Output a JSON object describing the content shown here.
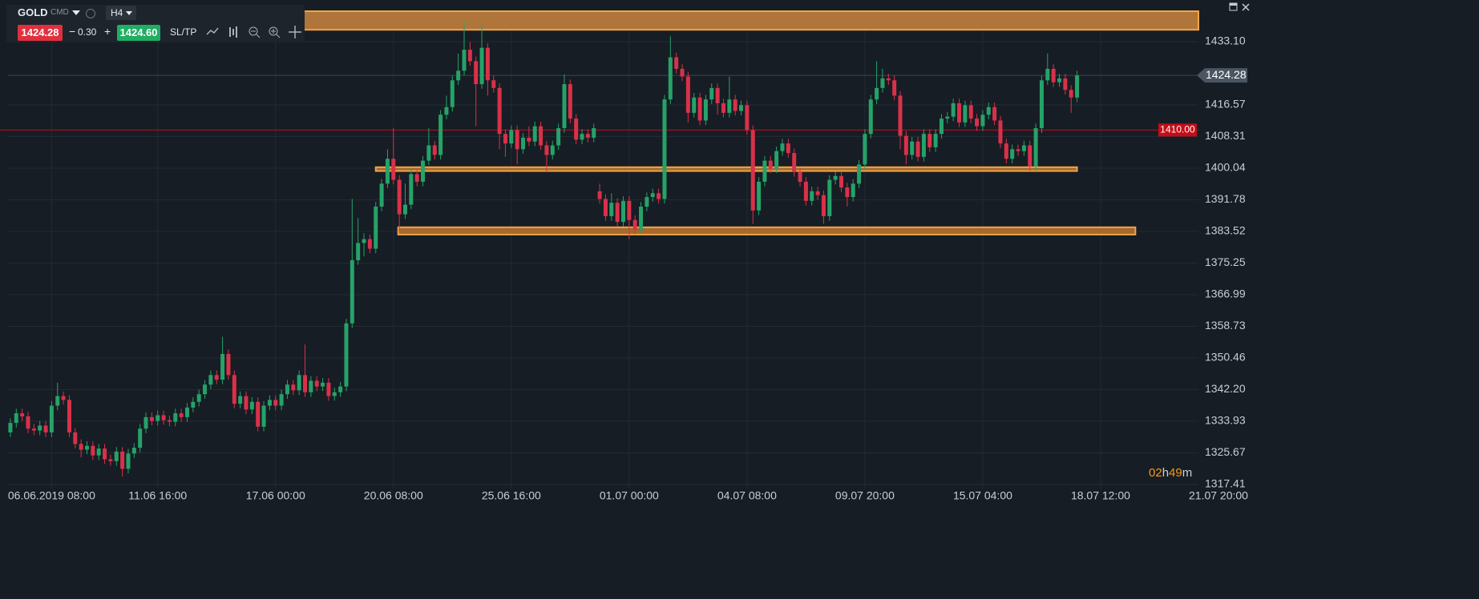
{
  "toolbar": {
    "symbol": "GOLD",
    "market": "CMD",
    "timeframe": "H4",
    "bid": "1424.28",
    "lot": "0.30",
    "ask": "1424.60",
    "sltp": "SL/TP"
  },
  "countdown": [
    "02",
    "h",
    "49",
    "m"
  ],
  "chart_data": {
    "type": "candlestick",
    "up_color": "#26a269",
    "down_color": "#d9314a",
    "grid": true,
    "xlim": [
      -0.4,
      201.6
    ],
    "ylim": [
      1316.36,
      1441.05
    ],
    "yticks": [
      1317.41,
      1325.67,
      1333.93,
      {
        "value": 1342.2,
        "label": "1342.20"
      },
      1350.46,
      1358.73,
      1366.99,
      1375.25,
      1383.52,
      1391.78,
      1400.04,
      1408.31,
      1416.57,
      {
        "value": 1433.1,
        "label": "1433.10"
      }
    ],
    "xticks": [
      {
        "value": 7,
        "label": "06.06.2019 08:00"
      },
      {
        "value": 25,
        "label": "11.06 16:00"
      },
      {
        "value": 45,
        "label": "17.06 00:00"
      },
      {
        "value": 65,
        "label": "20.06 08:00"
      },
      {
        "value": 85,
        "label": "25.06 16:00"
      },
      {
        "value": 105,
        "label": "01.07 00:00"
      },
      {
        "value": 125,
        "label": "04.07 08:00"
      },
      {
        "value": 145,
        "label": "09.07 20:00"
      },
      {
        "value": 165,
        "label": "15.07 04:00"
      },
      {
        "value": 185,
        "label": "18.07 12:00"
      },
      {
        "value": 205,
        "label": "21.07 20:00"
      }
    ],
    "last_price": 1424.28,
    "alert_level": {
      "value": 1410,
      "label": "1410.00"
    },
    "zones": [
      {
        "from": 1436.2,
        "to": 1441.05,
        "start": -0.4,
        "end": 201.6
      },
      {
        "from": 1399.3,
        "to": 1400.3,
        "start": 62,
        "end": 181
      },
      {
        "from": 1382.7,
        "to": 1384.6,
        "start": 65.8,
        "end": 190.9
      }
    ],
    "open": [
      1331,
      1333.5,
      1336,
      1335.2,
      1332,
      1331.5,
      1332.8,
      1331,
      1338,
      1340.5,
      1339.5,
      1331,
      1328,
      1326.5,
      1327.5,
      1325,
      1326.8,
      1324,
      1323.5,
      1326,
      1321.5,
      1325.5,
      1327,
      1332,
      1335,
      1334,
      1335.5,
      1334.2,
      1333.8,
      1336,
      1335,
      1337.5,
      1339,
      1341,
      1343.5,
      1346,
      1344.8,
      1351.5,
      1346,
      1338.5,
      1340.5,
      1337,
      1339,
      1332.5,
      1338,
      1339.5,
      1338,
      1341,
      1343.5,
      1342,
      1346,
      1341.5,
      1344.5,
      1343,
      1344,
      1340.5,
      1341.5,
      1343,
      1359.5,
      1376,
      1380.5,
      1381.5,
      1379,
      1390,
      1396,
      1402.5,
      1397,
      1388,
      1390.5,
      1398.5,
      1396.5,
      1402,
      1406,
      1403.5,
      1414,
      1416,
      1423,
      1425.5,
      1431,
      1428,
      1422,
      1431.5,
      1423,
      1421,
      1409,
      1406.5,
      1410,
      1405,
      1408,
      1407,
      1411,
      1406,
      1403.5,
      1406,
      1410.5,
      1422,
      1413,
      1407.5,
      1409,
      1408,
      1394,
      1392,
      1387.5,
      1391,
      1386,
      1391.5,
      1386.5,
      1384,
      1390,
      1392.5,
      1393.5,
      1392,
      1418,
      1429,
      1426,
      1424,
      1414.5,
      1418.5,
      1412.5,
      1418,
      1421,
      1417,
      1414.5,
      1418,
      1415,
      1416.5,
      1410,
      1389,
      1396.5,
      1402,
      1400,
      1404.5,
      1406.5,
      1404,
      1399,
      1396.5,
      1391.5,
      1394,
      1393,
      1387.5,
      1397,
      1398,
      1395,
      1392.5,
      1396,
      1401,
      1409,
      1418,
      1421,
      1423.5,
      1423,
      1419,
      1408.5,
      1403.5,
      1407,
      1403,
      1409,
      1405.5,
      1409,
      1413,
      1413.5,
      1417,
      1412,
      1416.5,
      1413,
      1411,
      1414,
      1416,
      1412.5,
      1406.5,
      1402.5,
      1405,
      1404.5,
      1406,
      1400.5,
      1410.5,
      1423,
      1426,
      1422.5,
      1423.5,
      1420.5,
      1418.5
    ],
    "high": [
      1334.7,
      1337.2,
      1337.2,
      1336.4,
      1333.2,
      1334,
      1334,
      1339.2,
      1344,
      1341.7,
      1340.7,
      1332.2,
      1329.2,
      1328.7,
      1328.7,
      1328,
      1328,
      1325.2,
      1327.2,
      1327.2,
      1326.7,
      1328.2,
      1333.2,
      1336.2,
      1336.2,
      1336.7,
      1336.7,
      1335.4,
      1337.2,
      1337.2,
      1338.7,
      1340.2,
      1342.2,
      1344.7,
      1347.2,
      1347.2,
      1356,
      1352.7,
      1347.2,
      1341.7,
      1341.7,
      1340.2,
      1340.2,
      1339.2,
      1340.7,
      1340.7,
      1342.2,
      1344.7,
      1344.7,
      1347.2,
      1354,
      1345.7,
      1345.7,
      1345.2,
      1345.2,
      1342.7,
      1344.2,
      1360.7,
      1392,
      1387,
      1383,
      1382.7,
      1391.2,
      1397.2,
      1405,
      1410.5,
      1398.2,
      1396,
      1399.7,
      1399.7,
      1403.2,
      1410.5,
      1407.2,
      1415.2,
      1419,
      1424.2,
      1430,
      1438.5,
      1433,
      1429.2,
      1437.5,
      1432.7,
      1424.2,
      1422.2,
      1410.2,
      1411.2,
      1411.2,
      1409.2,
      1411,
      1412.2,
      1412.2,
      1407.2,
      1407.2,
      1411.7,
      1424.5,
      1423.2,
      1414.2,
      1410.2,
      1410.2,
      1411.7,
      1396,
      1393.2,
      1393.5,
      1392.2,
      1392.7,
      1392.7,
      1387.7,
      1391.2,
      1393.7,
      1394.7,
      1394.7,
      1419.2,
      1434.5,
      1430.2,
      1427.2,
      1425.2,
      1419.7,
      1419.7,
      1419.2,
      1422.2,
      1422.2,
      1418.2,
      1424,
      1419.2,
      1417.7,
      1417.7,
      1411.2,
      1397.7,
      1403.2,
      1403.2,
      1405.7,
      1407.7,
      1407.7,
      1405.2,
      1400.2,
      1397.7,
      1395.2,
      1395.2,
      1394.2,
      1398.2,
      1399.2,
      1399.2,
      1396.2,
      1397.2,
      1402.2,
      1410.2,
      1419.2,
      1428,
      1426,
      1424.7,
      1424.2,
      1420.2,
      1409.7,
      1408.2,
      1408.2,
      1410.2,
      1410.2,
      1410.2,
      1414.2,
      1414.7,
      1418.2,
      1418.2,
      1417.7,
      1417.7,
      1414.2,
      1415.2,
      1417.2,
      1417.2,
      1413.7,
      1407.7,
      1406.2,
      1406.2,
      1407.2,
      1407.2,
      1411.7,
      1424.2,
      1430,
      1427.2,
      1424.7,
      1424.7,
      1421.7,
      1425.5
    ],
    "low": [
      1329.8,
      1332.3,
      1334,
      1330.8,
      1330.3,
      1330.3,
      1329.8,
      1329.8,
      1336.8,
      1338.3,
      1329.8,
      1326.8,
      1324.5,
      1325.3,
      1323.8,
      1323.8,
      1322.8,
      1322.3,
      1322.3,
      1319.5,
      1320.3,
      1324.3,
      1325.8,
      1330.8,
      1332.8,
      1332.8,
      1333,
      1332.6,
      1332.6,
      1333.8,
      1333.8,
      1336.3,
      1337.8,
      1339.8,
      1342.3,
      1343.6,
      1343.6,
      1344.8,
      1337.3,
      1337.3,
      1335.8,
      1335.8,
      1331.3,
      1331.3,
      1336.8,
      1336.8,
      1336.8,
      1339.8,
      1340.8,
      1340.8,
      1340.3,
      1340.3,
      1341.8,
      1341.8,
      1339.3,
      1339.3,
      1340.3,
      1341.8,
      1358.3,
      1374.8,
      1377,
      1377.8,
      1377.8,
      1388.8,
      1394.8,
      1395.8,
      1383.5,
      1386.8,
      1389.3,
      1395.3,
      1395.3,
      1400.8,
      1402.3,
      1402.3,
      1412.8,
      1414.8,
      1421.8,
      1424.3,
      1426.8,
      1411,
      1420.8,
      1419,
      1419.8,
      1405,
      1403,
      1405.3,
      1401,
      1403.8,
      1405.8,
      1405.8,
      1404.8,
      1399,
      1402.3,
      1404.8,
      1409.3,
      1411.8,
      1406.3,
      1406.3,
      1406.8,
      1406.8,
      1390.8,
      1386.3,
      1386.3,
      1384.8,
      1384.8,
      1381.5,
      1382.8,
      1382.8,
      1388.8,
      1391.3,
      1390.8,
      1390.8,
      1416.8,
      1424.8,
      1422.8,
      1412,
      1413.3,
      1411.3,
      1411.3,
      1416.8,
      1414,
      1413.3,
      1413.3,
      1413.8,
      1413.8,
      1408.8,
      1385.5,
      1387.8,
      1395.3,
      1398.8,
      1398.8,
      1403.3,
      1402.8,
      1397.8,
      1395.3,
      1390.3,
      1390.3,
      1391.8,
      1385.5,
      1386.3,
      1395.8,
      1393.8,
      1390,
      1391.3,
      1394.8,
      1399.8,
      1407.8,
      1416.8,
      1419.8,
      1421.8,
      1417.8,
      1405,
      1401,
      1402.3,
      1401.8,
      1401.8,
      1404.3,
      1404.3,
      1407.8,
      1411.8,
      1412.3,
      1410.8,
      1410.8,
      1411.8,
      1409.8,
      1409.8,
      1412.8,
      1411.3,
      1405.3,
      1401.3,
      1401.3,
      1403.3,
      1403.3,
      1399.3,
      1399.3,
      1409.3,
      1421.8,
      1421.3,
      1421.3,
      1419.3,
      1414.5,
      1417.3
    ],
    "close": [
      1333.5,
      1336,
      1335.2,
      1332,
      1331.5,
      1332.8,
      1331,
      1338,
      1340.5,
      1339.5,
      1331,
      1328,
      1326.5,
      1327.5,
      1325,
      1326.8,
      1324,
      1323.5,
      1326,
      1321.5,
      1325.5,
      1327,
      1332,
      1335,
      1334,
      1335.5,
      1334.2,
      1333.8,
      1336,
      1335,
      1337.5,
      1339,
      1341,
      1343.5,
      1346,
      1344.8,
      1351.5,
      1346,
      1338.5,
      1340.5,
      1337,
      1339,
      1332.5,
      1338,
      1339.5,
      1338,
      1341,
      1343.5,
      1342,
      1346,
      1341.5,
      1344.5,
      1343,
      1344,
      1340.5,
      1341.5,
      1343,
      1359.5,
      1376,
      1380.5,
      1381.5,
      1379,
      1390,
      1396,
      1402.5,
      1397,
      1388,
      1390.5,
      1398.5,
      1396.5,
      1402,
      1406,
      1403.5,
      1414,
      1416,
      1423,
      1425.5,
      1431,
      1428,
      1422,
      1431.5,
      1423,
      1421,
      1409,
      1406.5,
      1410,
      1405,
      1408,
      1407,
      1411,
      1406,
      1403.5,
      1406,
      1410.5,
      1422,
      1413,
      1407.5,
      1409,
      1408,
      1410.5,
      1392,
      1387.5,
      1391,
      1386,
      1391.5,
      1386.5,
      1384,
      1390,
      1392.5,
      1393.5,
      1392,
      1418,
      1429,
      1426,
      1424,
      1414.5,
      1418.5,
      1412.5,
      1418,
      1421,
      1417,
      1414.5,
      1418,
      1415,
      1416.5,
      1410,
      1389,
      1396.5,
      1402,
      1400,
      1404.5,
      1406.5,
      1404,
      1399,
      1396.5,
      1391.5,
      1394,
      1393,
      1387.5,
      1397,
      1398,
      1395,
      1392.5,
      1396,
      1401,
      1409,
      1418,
      1421,
      1423.5,
      1423,
      1419,
      1408.5,
      1403.5,
      1407,
      1403,
      1409,
      1405.5,
      1409,
      1413,
      1413.5,
      1417,
      1412,
      1416.5,
      1413,
      1411,
      1414,
      1416,
      1412.5,
      1406.5,
      1402.5,
      1405,
      1404.5,
      1406,
      1400.5,
      1410.5,
      1423,
      1426,
      1422.5,
      1423.5,
      1420.5,
      1418.5,
      1424.28
    ]
  }
}
